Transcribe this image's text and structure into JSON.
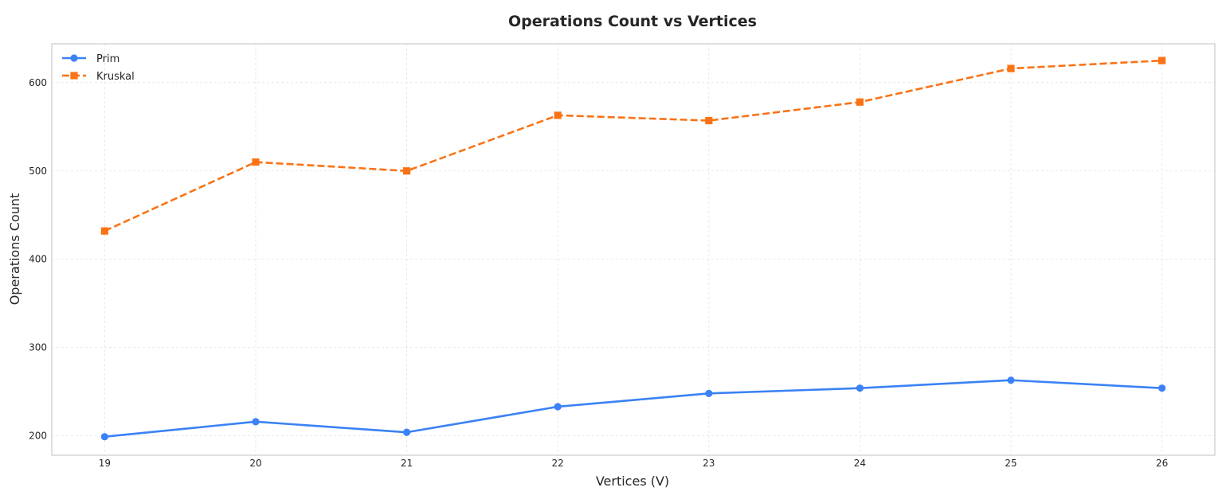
{
  "chart_data": {
    "type": "line",
    "title": "Operations Count vs Vertices",
    "xlabel": "Vertices (V)",
    "ylabel": "Operations Count",
    "x": [
      19,
      20,
      21,
      22,
      23,
      24,
      25,
      26
    ],
    "xlim": [
      18.65,
      26.35
    ],
    "ylim": [
      178,
      644
    ],
    "yticks": [
      200,
      300,
      400,
      500,
      600
    ],
    "grid": true,
    "legend_position": "top-left",
    "series": [
      {
        "name": "Prim",
        "values": [
          199,
          216,
          204,
          233,
          248,
          254,
          263,
          254
        ],
        "color": "#3b82f6",
        "marker": "circle",
        "linestyle": "solid"
      },
      {
        "name": "Kruskal",
        "values": [
          432,
          510,
          500,
          563,
          557,
          578,
          616,
          625
        ],
        "color": "#f97316",
        "marker": "square",
        "linestyle": "dashed"
      }
    ]
  }
}
